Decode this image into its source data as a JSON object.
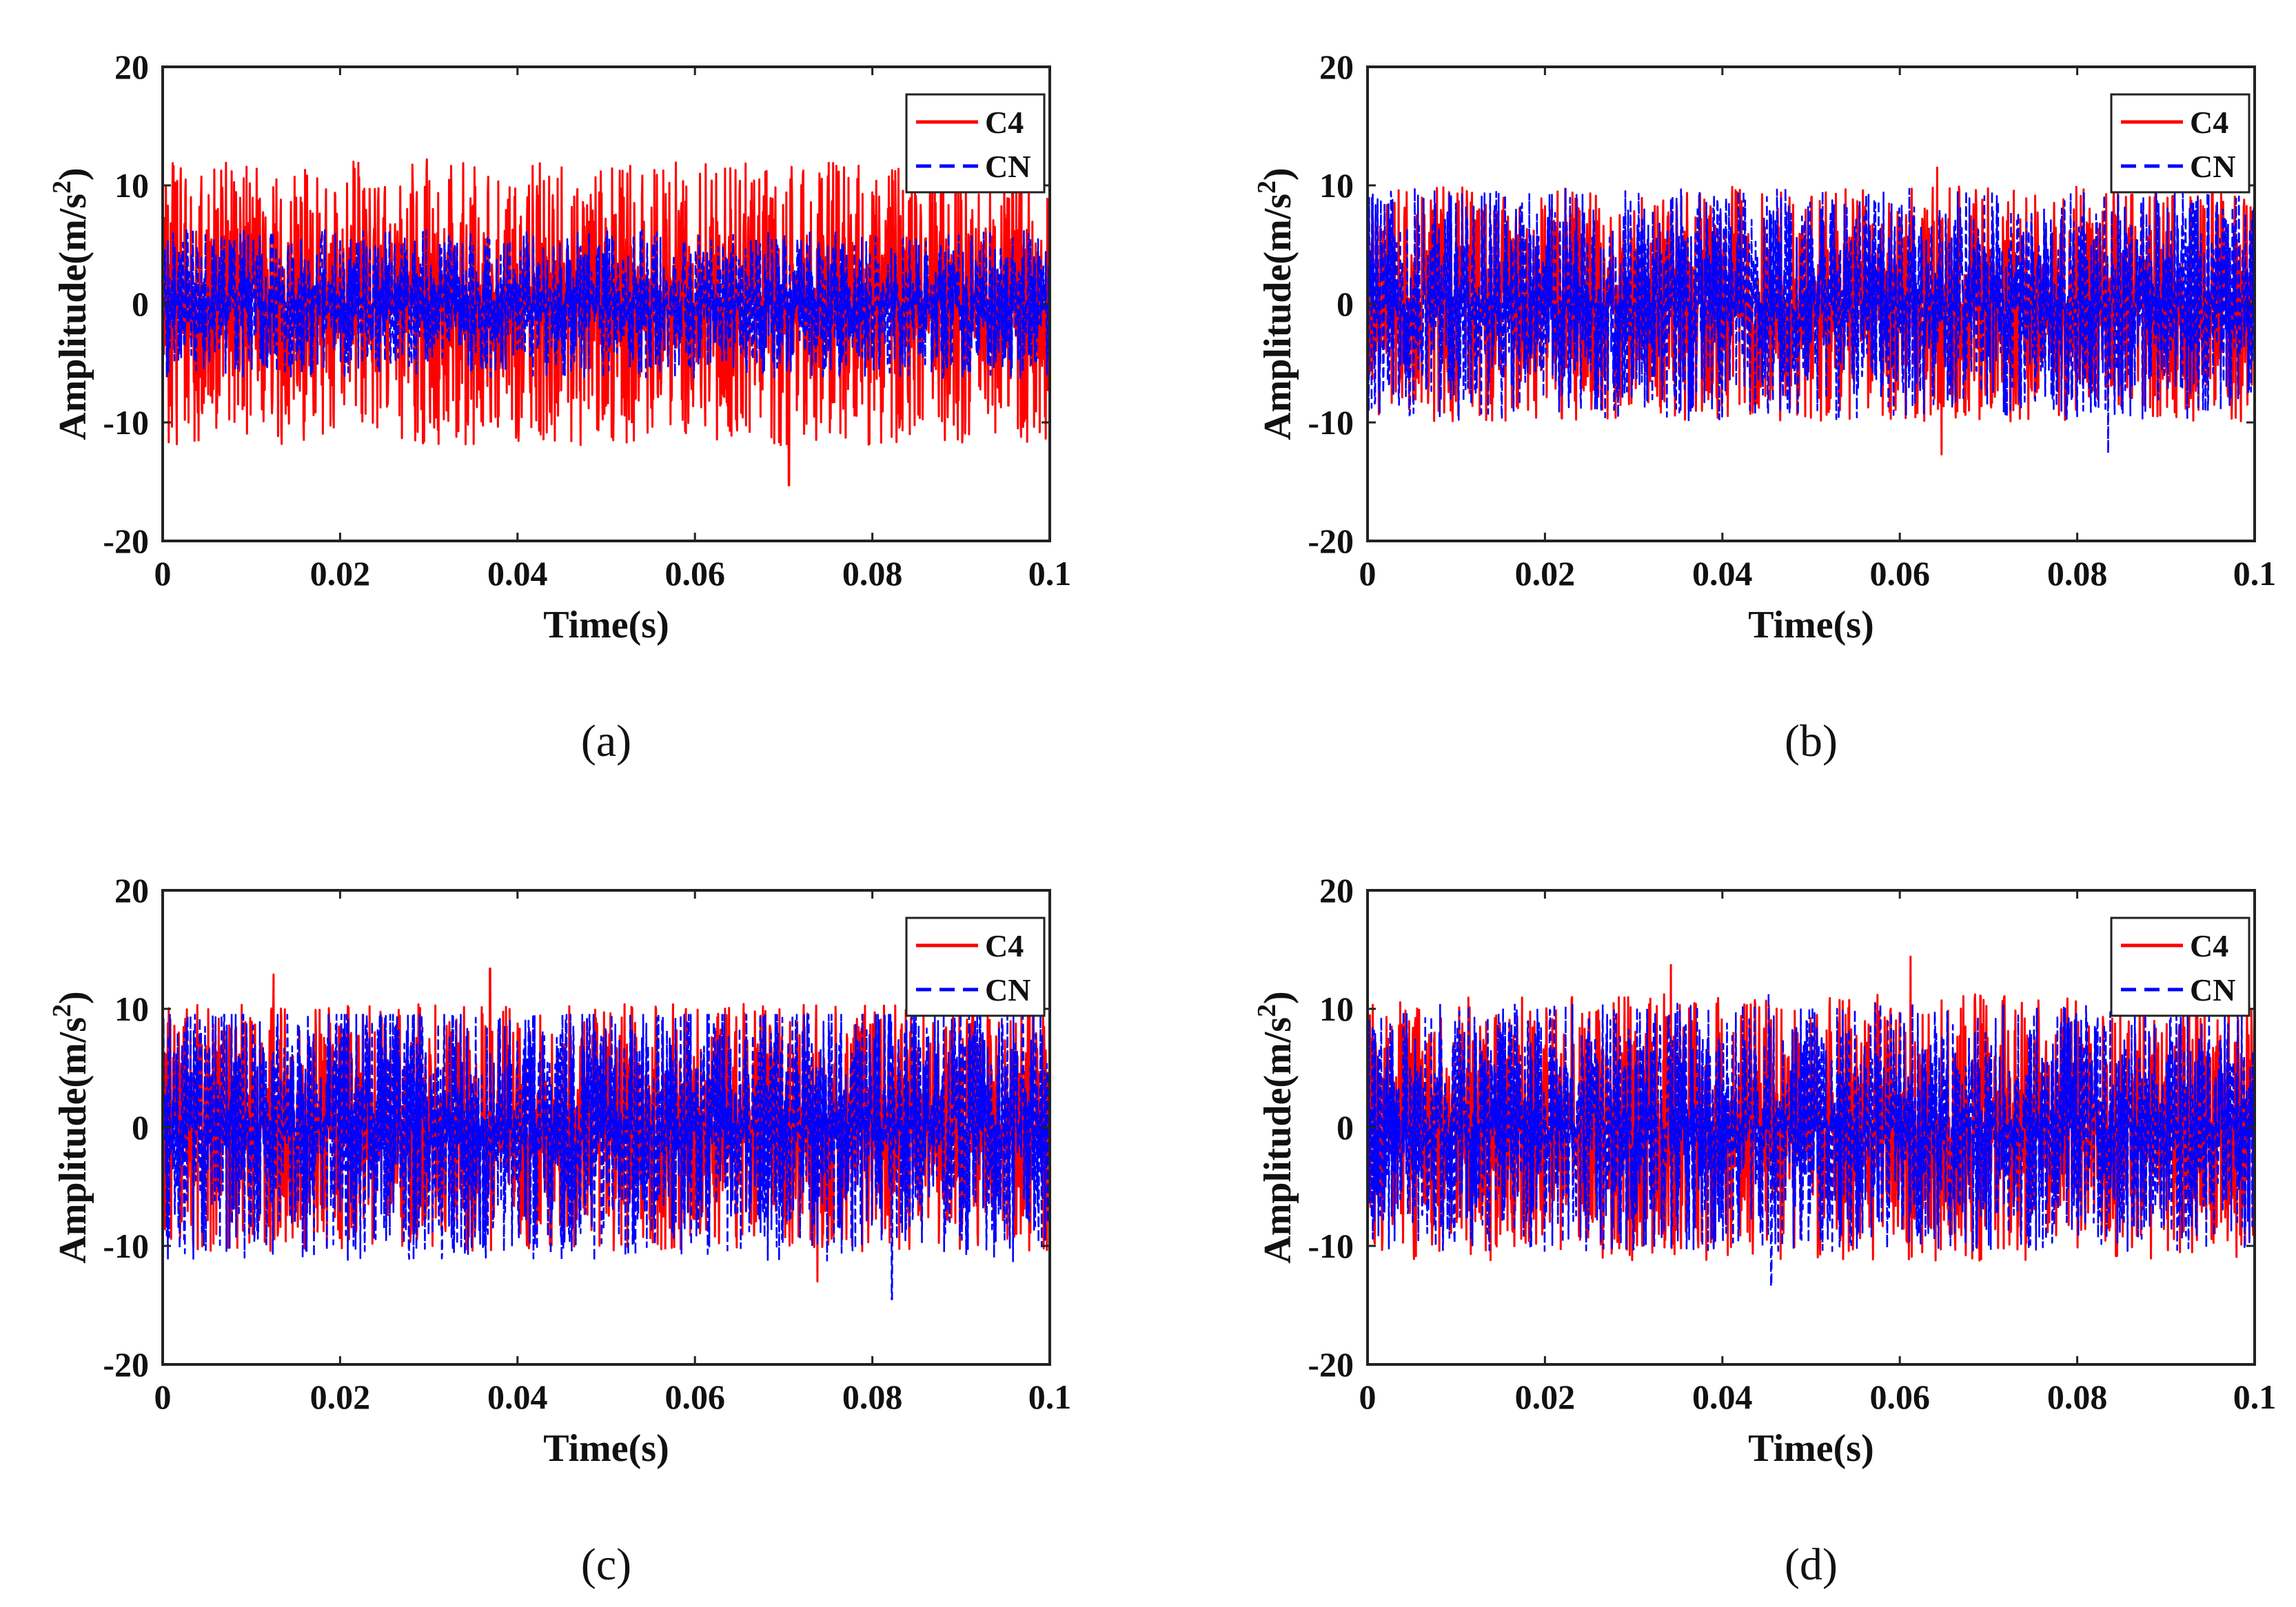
{
  "chart_data": [
    {
      "type": "line",
      "caption": "(a)",
      "xlabel": "Time(s)",
      "ylabel_main": "Amplitude(m/s",
      "ylabel_sup": "2",
      "ylabel_close": ")",
      "xlim": [
        0,
        0.1
      ],
      "ylim": [
        -20,
        20
      ],
      "xticks": [
        "0",
        "0.02",
        "0.04",
        "0.06",
        "0.08",
        "0.1"
      ],
      "yticks": [
        "20",
        "10",
        "0",
        "-10",
        "-20"
      ],
      "legend_position": "top-right",
      "series": [
        {
          "name": "C4",
          "color": "#ff0000",
          "style": "solid",
          "amplitude_range": [
            -15.3,
            12.2
          ],
          "peaks": [
            {
              "x": 0.0215,
              "y": 12.0
            },
            {
              "x": 0.0298,
              "y": 12.2
            },
            {
              "x": 0.0706,
              "y": -15.3
            }
          ]
        },
        {
          "name": "CN",
          "color": "#0000ff",
          "style": "dashed",
          "amplitude_range": [
            -8.0,
            7.5
          ]
        }
      ]
    },
    {
      "type": "line",
      "caption": "(b)",
      "xlabel": "Time(s)",
      "ylabel_main": "Amplitude(m/s",
      "ylabel_sup": "2",
      "ylabel_close": ")",
      "xlim": [
        0,
        0.1
      ],
      "ylim": [
        -20,
        20
      ],
      "xticks": [
        "0",
        "0.02",
        "0.04",
        "0.06",
        "0.08",
        "0.1"
      ],
      "yticks": [
        "20",
        "10",
        "0",
        "-10",
        "-20"
      ],
      "legend_position": "top-right",
      "series": [
        {
          "name": "C4",
          "color": "#ff0000",
          "style": "solid",
          "amplitude_range": [
            -12.7,
            11.5
          ],
          "peaks": [
            {
              "x": 0.0642,
              "y": 11.5
            },
            {
              "x": 0.0647,
              "y": -12.7
            }
          ]
        },
        {
          "name": "CN",
          "color": "#0000ff",
          "style": "dashed",
          "amplitude_range": [
            -12.6,
            10.0
          ],
          "peaks": [
            {
              "x": 0.0835,
              "y": -12.6
            }
          ]
        }
      ]
    },
    {
      "type": "line",
      "caption": "(c)",
      "xlabel": "Time(s)",
      "ylabel_main": "Amplitude(m/s",
      "ylabel_sup": "2",
      "ylabel_close": ")",
      "xlim": [
        0,
        0.1
      ],
      "ylim": [
        -20,
        20
      ],
      "xticks": [
        "0",
        "0.02",
        "0.04",
        "0.06",
        "0.08",
        "0.1"
      ],
      "yticks": [
        "20",
        "10",
        "0",
        "-10",
        "-20"
      ],
      "legend_position": "top-right",
      "series": [
        {
          "name": "C4",
          "color": "#ff0000",
          "style": "solid",
          "amplitude_range": [
            -13.0,
            13.4
          ],
          "peaks": [
            {
              "x": 0.0125,
              "y": 12.9
            },
            {
              "x": 0.0369,
              "y": 13.4
            },
            {
              "x": 0.0738,
              "y": -13.0
            }
          ]
        },
        {
          "name": "CN",
          "color": "#0000ff",
          "style": "dashed",
          "amplitude_range": [
            -14.5,
            9.5
          ],
          "peaks": [
            {
              "x": 0.0822,
              "y": -14.5
            }
          ]
        }
      ]
    },
    {
      "type": "line",
      "caption": "(d)",
      "xlabel": "Time(s)",
      "ylabel_main": "Amplitude(m/s",
      "ylabel_sup": "2",
      "ylabel_close": ")",
      "xlim": [
        0,
        0.1
      ],
      "ylim": [
        -20,
        20
      ],
      "xticks": [
        "0",
        "0.02",
        "0.04",
        "0.06",
        "0.08",
        "0.1"
      ],
      "yticks": [
        "20",
        "10",
        "0",
        "-10",
        "-20"
      ],
      "legend_position": "top-right",
      "series": [
        {
          "name": "C4",
          "color": "#ff0000",
          "style": "solid",
          "amplitude_range": [
            -13.2,
            14.4
          ],
          "peaks": [
            {
              "x": 0.0342,
              "y": 13.7
            },
            {
              "x": 0.0612,
              "y": 14.4
            }
          ]
        },
        {
          "name": "CN",
          "color": "#0000ff",
          "style": "dashed",
          "amplitude_range": [
            -13.4,
            11.3
          ],
          "peaks": [
            {
              "x": 0.0452,
              "y": 11.3
            },
            {
              "x": 0.0455,
              "y": -13.4
            }
          ]
        }
      ]
    }
  ]
}
